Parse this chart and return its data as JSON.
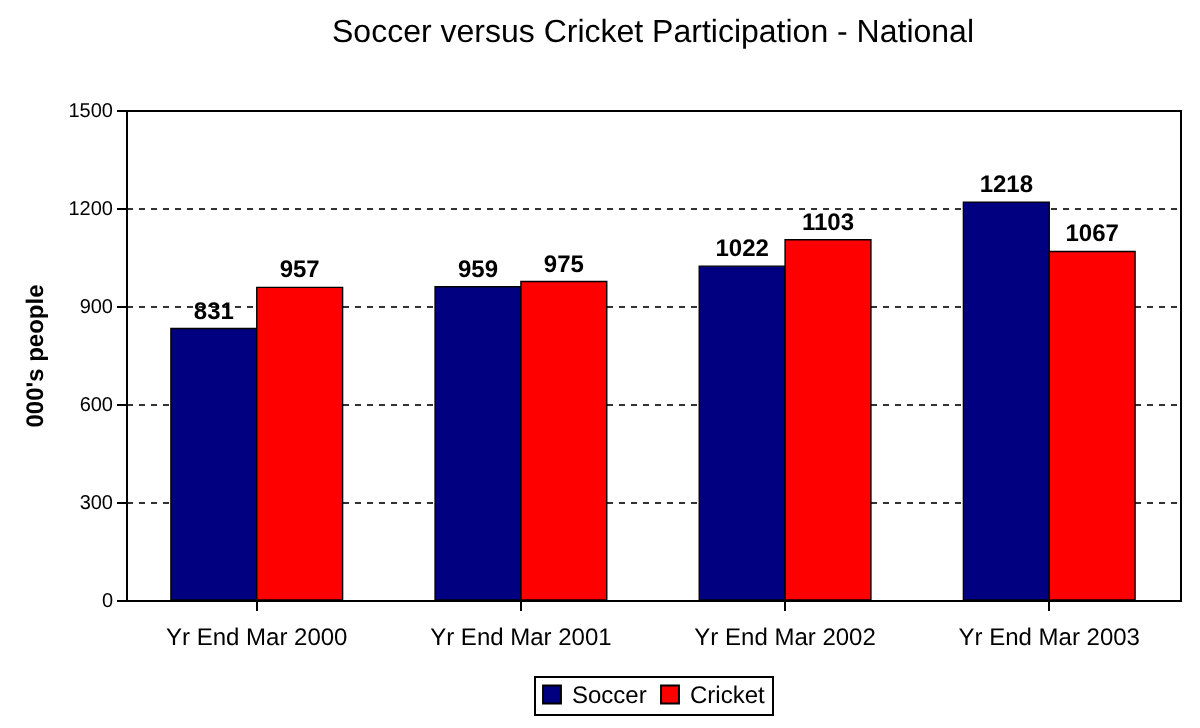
{
  "chart_data": {
    "type": "bar",
    "title": "Soccer versus Cricket Participation - National",
    "ylabel": "000's people",
    "categories": [
      "Yr End Mar 2000",
      "Yr End Mar 2001",
      "Yr End Mar 2002",
      "Yr End Mar 2003"
    ],
    "series": [
      {
        "name": "Soccer",
        "color": "#000080",
        "values": [
          831,
          959,
          1022,
          1218
        ]
      },
      {
        "name": "Cricket",
        "color": "#ff0000",
        "values": [
          957,
          975,
          1103,
          1067
        ]
      }
    ],
    "ylim": [
      0,
      1500
    ],
    "yticks": [
      0,
      300,
      600,
      900,
      1200,
      1500
    ],
    "grid": "y",
    "legend": "bottom",
    "data_labels": true
  }
}
